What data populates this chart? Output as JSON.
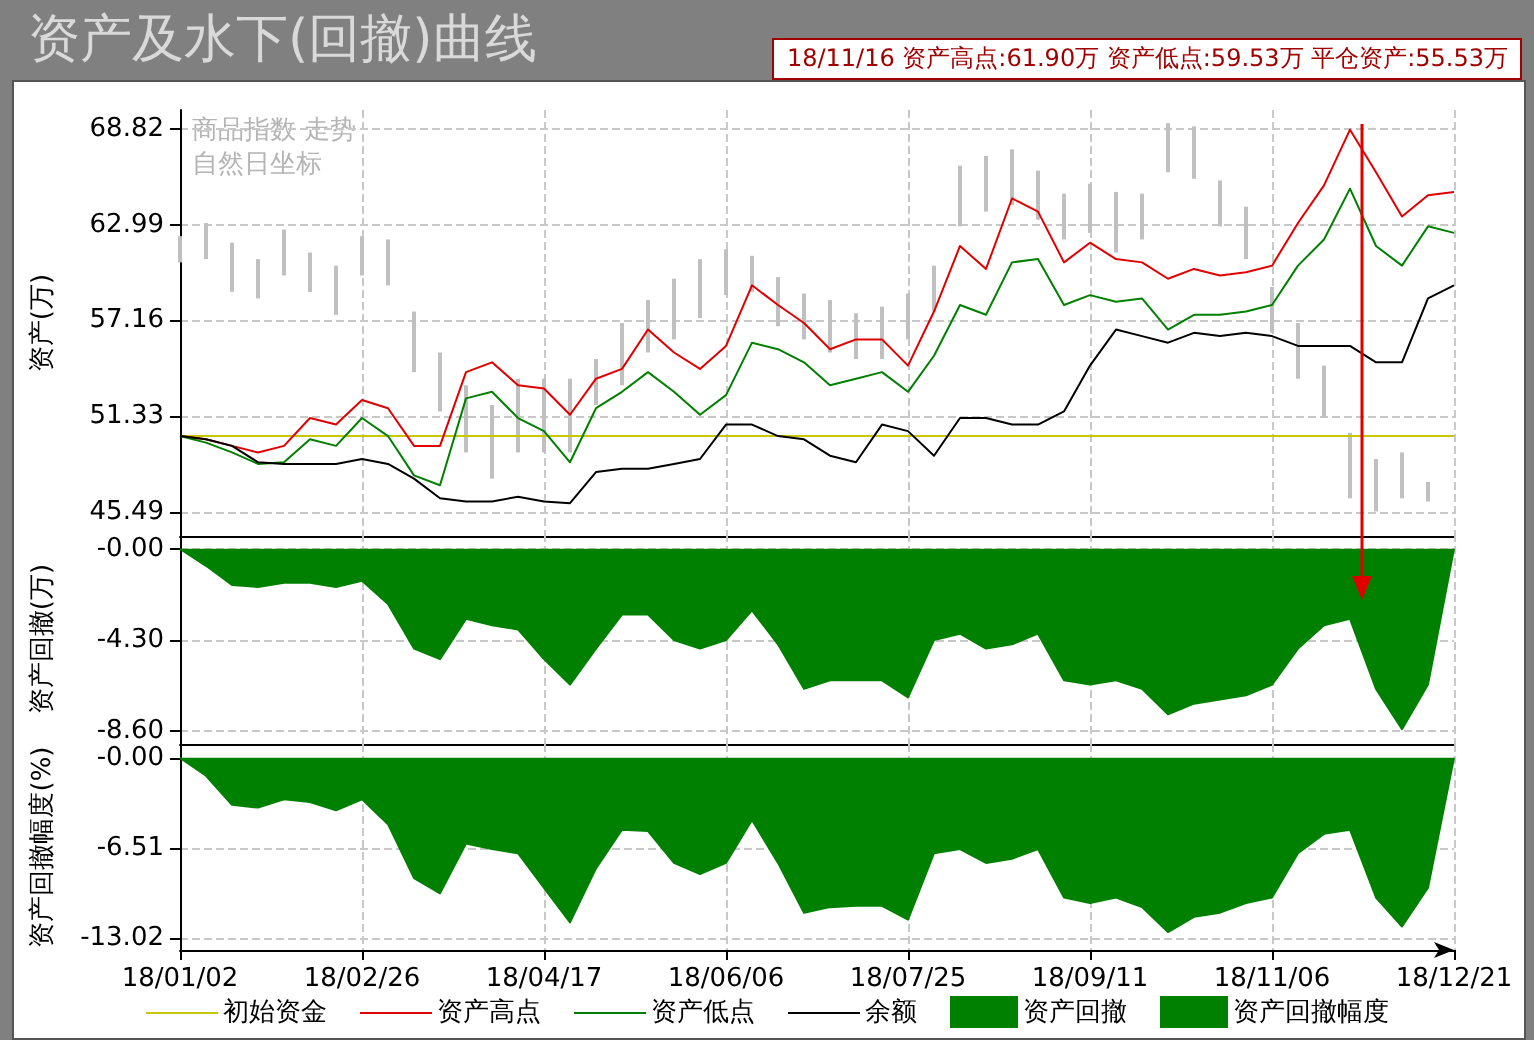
{
  "chart_data": [
    {
      "type": "line",
      "title": "资产及水下(回撤)曲线",
      "subtitle": "18/11/16 资产高点:61.90万 资产低点:59.53万 平仓资产:55.53万",
      "ylabel": "资产(万)",
      "annotations": [
        "商品指数 走势",
        "自然日坐标"
      ],
      "categories": [
        null,
        null,
        null,
        null,
        null,
        null,
        null,
        null,
        null,
        null,
        null,
        null,
        null,
        null,
        null,
        null,
        null,
        null,
        null,
        null,
        null,
        null,
        null,
        null,
        null,
        null,
        null,
        null,
        null,
        null,
        null,
        null,
        null,
        null,
        null,
        null,
        null,
        null,
        null,
        null,
        null,
        null,
        null,
        null,
        null,
        null,
        null,
        null,
        null,
        null
      ],
      "ylim": [
        44.0,
        70.0
      ],
      "yticks": [
        45.49,
        51.33,
        57.16,
        62.99,
        68.82
      ],
      "grid": true,
      "tick_labels": "y",
      "legend": "bottom",
      "marker": "none",
      "series": [
        {
          "type": "bar",
          "color": "#c0c0c0",
          "base": [
            60.7,
            60.9,
            58.9,
            58.5,
            59.9,
            58.9,
            57.5,
            59.9,
            59.3,
            54.0,
            51.6,
            49.1,
            47.5,
            49.1,
            49.1,
            49.1,
            52.0,
            53.2,
            55.2,
            56.0,
            57.3,
            58.7,
            58.9,
            56.8,
            56.0,
            55.2,
            54.8,
            54.8,
            56.0,
            57.7,
            62.9,
            63.8,
            64.2,
            63.3,
            62.1,
            62.5,
            61.3,
            62.1,
            66.2,
            65.8,
            62.9,
            60.9,
            56.4,
            53.6,
            51.2,
            46.3,
            45.5,
            46.3,
            46.1,
            null
          ],
          "values": [
            1.6,
            2.2,
            3.0,
            2.4,
            2.8,
            2.4,
            3.0,
            2.4,
            2.8,
            3.7,
            3.6,
            4.1,
            4.5,
            4.5,
            4.5,
            4.5,
            2.8,
            3.8,
            3.2,
            3.7,
            3.6,
            2.8,
            2.2,
            3.0,
            2.8,
            3.2,
            2.8,
            3.2,
            2.8,
            2.8,
            3.7,
            3.4,
            3.4,
            3.0,
            2.8,
            3.0,
            3.7,
            2.8,
            3.0,
            3.2,
            2.8,
            3.2,
            2.8,
            3.4,
            3.2,
            4.0,
            3.2,
            2.8,
            1.2,
            null
          ]
        },
        {
          "name": "初始资金",
          "color": "#c8c800",
          "values": [
            50.1,
            50.1,
            50.1,
            50.1,
            50.1,
            50.1,
            50.1,
            50.1,
            50.1,
            50.1,
            50.1,
            50.1,
            50.1,
            50.1,
            50.1,
            50.1,
            50.1,
            50.1,
            50.1,
            50.1,
            50.1,
            50.1,
            50.1,
            50.1,
            50.1,
            50.1,
            50.1,
            50.1,
            50.1,
            50.1,
            50.1,
            50.1,
            50.1,
            50.1,
            50.1,
            50.1,
            50.1,
            50.1,
            50.1,
            50.1,
            50.1,
            50.1,
            50.1,
            50.1,
            50.1,
            50.1,
            50.1,
            50.1,
            50.1,
            50.1
          ]
        },
        {
          "name": "资产高点",
          "color": "#e00000",
          "values": [
            50.1,
            49.9,
            49.5,
            49.1,
            49.5,
            51.2,
            50.8,
            52.3,
            51.8,
            49.5,
            49.5,
            54.0,
            54.6,
            53.2,
            53.0,
            51.4,
            53.6,
            54.2,
            56.6,
            55.2,
            54.2,
            55.6,
            59.3,
            58.1,
            57.0,
            55.4,
            56.0,
            56.0,
            54.4,
            57.7,
            61.7,
            60.3,
            64.6,
            63.8,
            60.7,
            61.9,
            60.9,
            60.7,
            59.7,
            60.3,
            59.9,
            60.1,
            60.5,
            63.1,
            65.4,
            68.8,
            66.2,
            63.5,
            64.8,
            65.0
          ]
        },
        {
          "name": "资产低点",
          "color": "#008000",
          "values": [
            50.1,
            49.7,
            49.1,
            48.4,
            48.5,
            49.9,
            49.5,
            51.2,
            50.1,
            47.7,
            47.1,
            52.4,
            52.8,
            51.2,
            50.4,
            48.5,
            51.8,
            52.8,
            54.0,
            52.8,
            51.4,
            52.6,
            55.8,
            55.4,
            54.6,
            53.2,
            53.6,
            54.0,
            52.8,
            55.0,
            58.1,
            57.5,
            60.7,
            60.9,
            58.1,
            58.7,
            58.3,
            58.5,
            56.6,
            57.5,
            57.5,
            57.7,
            58.1,
            60.5,
            62.1,
            65.2,
            61.7,
            60.5,
            62.9,
            62.5
          ]
        },
        {
          "name": "余额",
          "color": "#000000",
          "values": [
            50.1,
            49.9,
            49.5,
            48.5,
            48.4,
            48.4,
            48.4,
            48.7,
            48.4,
            47.5,
            46.3,
            46.1,
            46.1,
            46.4,
            46.1,
            46.0,
            47.9,
            48.1,
            48.1,
            48.4,
            48.7,
            50.8,
            50.8,
            50.1,
            49.9,
            48.9,
            48.5,
            50.8,
            50.4,
            48.9,
            51.2,
            51.2,
            50.8,
            50.8,
            51.6,
            54.4,
            56.6,
            56.2,
            55.8,
            56.4,
            56.2,
            56.4,
            56.2,
            55.6,
            55.6,
            55.6,
            54.6,
            54.6,
            58.5,
            59.3
          ]
        }
      ]
    },
    {
      "type": "area",
      "ylabel": "资产回撤(万)",
      "categories": [
        null,
        null,
        null,
        null,
        null,
        null,
        null,
        null,
        null,
        null,
        null,
        null,
        null,
        null,
        null,
        null,
        null,
        null,
        null,
        null,
        null,
        null,
        null,
        null,
        null,
        null,
        null,
        null,
        null,
        null,
        null,
        null,
        null,
        null,
        null,
        null,
        null,
        null,
        null,
        null,
        null,
        null,
        null,
        null,
        null,
        null,
        null,
        null,
        null,
        null
      ],
      "ylim": [
        -9.2,
        0.7
      ],
      "yticks": [
        {
          "value": 0,
          "label": "-0.00"
        },
        {
          "value": -4.3,
          "label": "-4.30"
        },
        {
          "value": -8.6,
          "label": "-8.60"
        }
      ],
      "grid": true,
      "tick_labels": "y",
      "legend": "bottom",
      "marker": "none",
      "series": [
        {
          "name": "资产回撤",
          "color": "#008000",
          "values": [
            0,
            -0.8,
            -1.7,
            -1.8,
            -1.6,
            -1.6,
            -1.8,
            -1.5,
            -2.6,
            -4.7,
            -5.2,
            -3.3,
            -3.6,
            -3.8,
            -5.2,
            -6.4,
            -4.7,
            -3.1,
            -3.1,
            -4.3,
            -4.7,
            -4.3,
            -2.9,
            -4.5,
            -6.6,
            -6.2,
            -6.2,
            -6.2,
            -7.0,
            -4.3,
            -4.0,
            -4.7,
            -4.5,
            -4.0,
            -6.2,
            -6.4,
            -6.2,
            -6.6,
            -7.8,
            -7.3,
            -7.1,
            -6.9,
            -6.4,
            -4.7,
            -3.6,
            -3.3,
            -6.6,
            -8.5,
            -6.4,
            0
          ]
        }
      ]
    },
    {
      "type": "area",
      "ylabel": "资产回撤幅度(%)",
      "categories": [
        "18/01/02",
        null,
        null,
        null,
        null,
        null,
        null,
        "18/02/26",
        null,
        null,
        null,
        null,
        null,
        null,
        "18/04/17",
        null,
        null,
        null,
        null,
        null,
        null,
        "18/06/06",
        null,
        null,
        null,
        null,
        null,
        null,
        "18/07/25",
        null,
        null,
        null,
        null,
        null,
        null,
        "18/09/11",
        null,
        null,
        null,
        null,
        null,
        null,
        "18/11/06",
        null,
        null,
        null,
        null,
        null,
        null,
        "18/12/21"
      ],
      "ylim": [
        -13.9,
        1.0
      ],
      "yticks": [
        {
          "value": 0,
          "label": "-0.00"
        },
        {
          "value": -6.51,
          "label": "-6.51"
        },
        {
          "value": -13.02,
          "label": "-13.02"
        }
      ],
      "grid": true,
      "legend": "bottom",
      "marker": "none",
      "series": [
        {
          "name": "资产回撤幅度",
          "color": "#008000",
          "values": [
            0,
            -1.3,
            -3.4,
            -3.6,
            -3.0,
            -3.2,
            -3.8,
            -3.0,
            -4.8,
            -8.7,
            -9.8,
            -6.2,
            -6.6,
            -6.9,
            -9.4,
            -11.9,
            -8.0,
            -5.2,
            -5.3,
            -7.6,
            -8.4,
            -7.6,
            -4.5,
            -7.6,
            -11.2,
            -10.8,
            -10.7,
            -10.7,
            -11.7,
            -6.9,
            -6.6,
            -7.6,
            -7.3,
            -6.6,
            -10.1,
            -10.5,
            -10.1,
            -10.8,
            -12.6,
            -11.5,
            -11.2,
            -10.5,
            -10.1,
            -6.9,
            -5.5,
            -5.2,
            -10.1,
            -12.2,
            -9.4,
            0
          ]
        }
      ]
    }
  ]
}
